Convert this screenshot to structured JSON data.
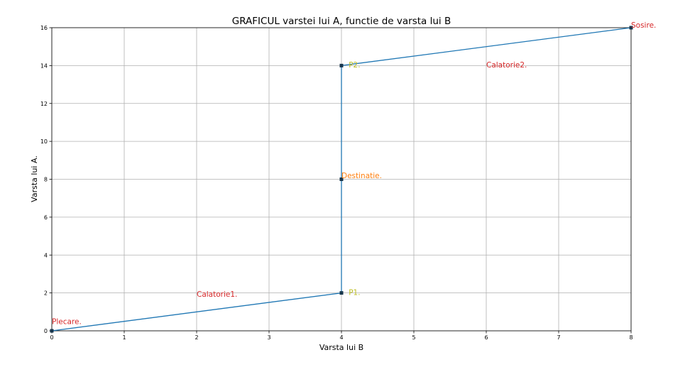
{
  "chart_data": {
    "type": "line",
    "title": "GRAFICUL varstei lui A, functie de varsta lui B",
    "xlabel": "Varsta lui B",
    "ylabel": "Varsta lui A.",
    "xlim": [
      0,
      8
    ],
    "ylim": [
      0,
      16
    ],
    "xticks": [
      0,
      1,
      2,
      3,
      4,
      5,
      6,
      7,
      8
    ],
    "yticks": [
      0,
      2,
      4,
      6,
      8,
      10,
      12,
      14,
      16
    ],
    "grid": true,
    "line_color": "#1f77b4",
    "marker_color": "#17364d",
    "series": [
      {
        "x": [
          0,
          4,
          4,
          4,
          8
        ],
        "y": [
          0,
          2,
          8,
          14,
          16
        ]
      }
    ],
    "markers": [
      {
        "x": 0,
        "y": 0
      },
      {
        "x": 4,
        "y": 2
      },
      {
        "x": 4,
        "y": 8
      },
      {
        "x": 4,
        "y": 14
      },
      {
        "x": 8,
        "y": 16
      }
    ],
    "annotations": [
      {
        "text": "Plecare.",
        "x": 0,
        "y": 0.35,
        "color": "#d62728",
        "anchor": "start"
      },
      {
        "text": "Calatorie1.",
        "x": 2,
        "y": 1.8,
        "color": "#d62728",
        "anchor": "start"
      },
      {
        "text": "P1.",
        "x": 4.1,
        "y": 1.9,
        "color": "#bcbd22",
        "anchor": "start"
      },
      {
        "text": "Destinatie.",
        "x": 4,
        "y": 8.05,
        "color": "#ff7f0e",
        "anchor": "start"
      },
      {
        "text": "P2.",
        "x": 4.1,
        "y": 13.9,
        "color": "#bcbd22",
        "anchor": "start"
      },
      {
        "text": "Calatorie2.",
        "x": 6,
        "y": 13.9,
        "color": "#d62728",
        "anchor": "start"
      },
      {
        "text": "Sosire.",
        "x": 8,
        "y": 16,
        "color": "#d62728",
        "anchor": "start"
      }
    ]
  }
}
